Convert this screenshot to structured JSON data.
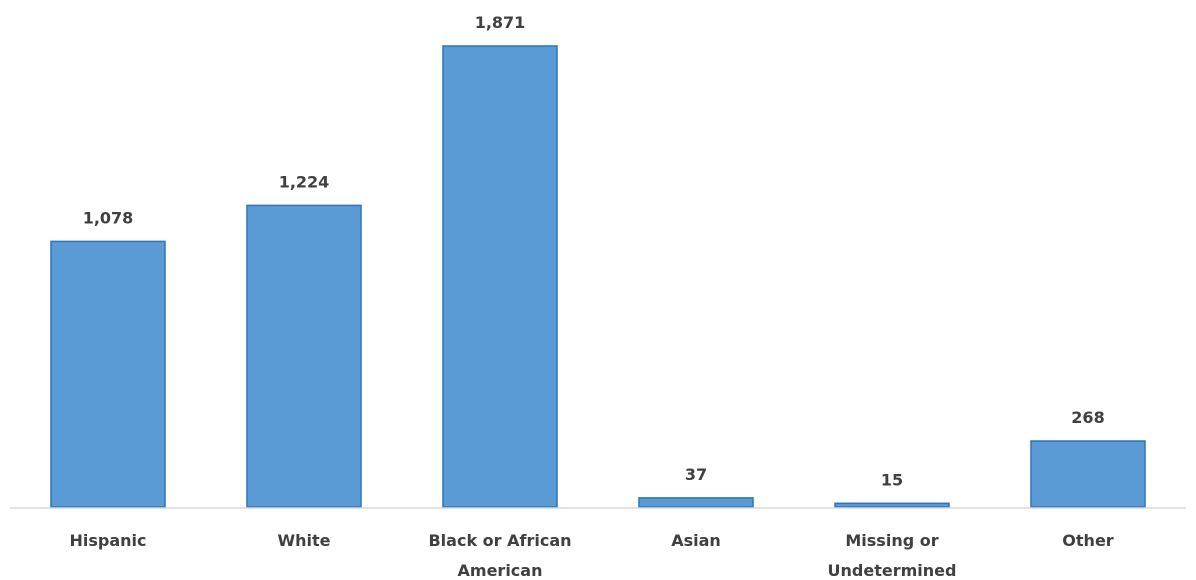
{
  "chart_data": {
    "type": "bar",
    "title": "",
    "xlabel": "",
    "ylabel": "",
    "categories": [
      [
        "Hispanic"
      ],
      [
        "White"
      ],
      [
        "Black or African",
        "American"
      ],
      [
        "Asian"
      ],
      [
        "Missing or",
        "Undetermined"
      ],
      [
        "Other"
      ]
    ],
    "values": [
      1078,
      1224,
      1871,
      37,
      15,
      268
    ],
    "data_labels": [
      "1,078",
      "1,224",
      "1,871",
      "37",
      "15",
      "268"
    ],
    "ylim": [
      0,
      1871
    ],
    "grid": false,
    "legend": "none",
    "colors": {
      "bar_fill": "#5b9bd5",
      "bar_edge": "#2e75b6",
      "axis": "#d9d9d9",
      "text": "#404040"
    }
  }
}
